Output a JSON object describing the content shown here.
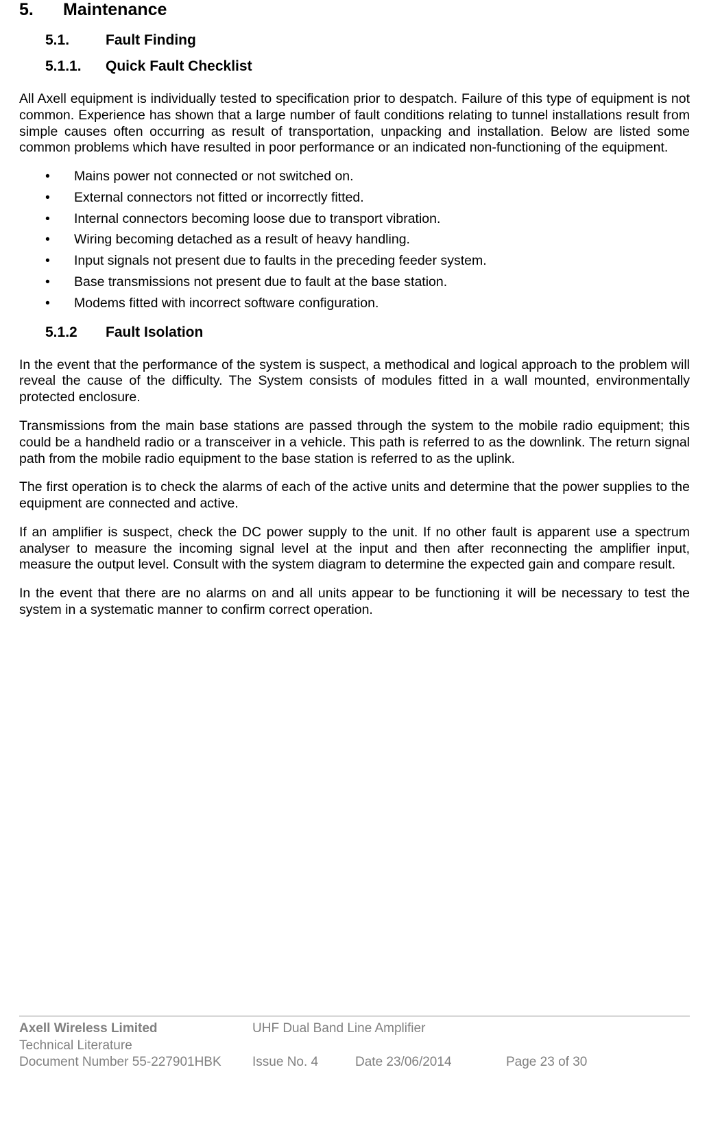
{
  "heading1": {
    "num": "5.",
    "text": "Maintenance"
  },
  "heading2": {
    "num": "5.1.",
    "text": "Fault Finding"
  },
  "heading3": {
    "num": "5.1.1.",
    "text": "Quick Fault Checklist"
  },
  "para1": "All Axell equipment is individually tested to specification prior to despatch. Failure of this type of equipment is not common. Experience has shown that a large number of fault conditions relating to tunnel installations result from simple causes often occurring as result of transportation, unpacking and installation. Below are listed some common problems which have resulted in poor performance or an indicated non-functioning of the equipment.",
  "bullets": [
    "Mains power not connected or not switched on.",
    "External connectors not fitted or incorrectly fitted.",
    "Internal connectors becoming loose due to transport vibration.",
    "Wiring becoming detached as a result of heavy handling.",
    "Input signals not present due to faults in the preceding feeder system.",
    "Base transmissions not present due to fault at the base station.",
    "Modems fitted with incorrect software configuration."
  ],
  "heading4": {
    "num": "5.1.2",
    "text": "Fault Isolation"
  },
  "para2": "In the event that the performance of the system is suspect, a methodical and logical approach to the problem will reveal the cause of the difficulty. The System consists of modules fitted in a wall mounted, environmentally protected enclosure.",
  "para3": "Transmissions from the main base stations are passed through the system to the mobile radio equipment; this could be a handheld radio or a transceiver in a vehicle. This path is referred to as the downlink. The return signal path from the mobile radio equipment to the base station is referred to as the uplink.",
  "para4": "The first operation is to check the alarms of each of the active units and determine that the power supplies to the equipment are connected and active.",
  "para5": "If an amplifier is suspect, check the DC power supply to the unit. If no other fault is apparent use a spectrum analyser to measure the incoming signal level at the input and then after reconnecting the amplifier input, measure the output level. Consult with the system diagram to determine the expected gain and compare result.",
  "para6": "In the event that there are no alarms on and all units appear to be functioning it will be necessary to test the system in a systematic manner to confirm correct operation.",
  "footer": {
    "company": "Axell Wireless Limited",
    "product": "UHF Dual Band Line Amplifier",
    "subtitle": "Technical Literature",
    "docnum": "Document Number 55-227901HBK",
    "issue": "Issue No. 4",
    "date": "Date 23/06/2014",
    "page": "Page 23 of 30"
  }
}
